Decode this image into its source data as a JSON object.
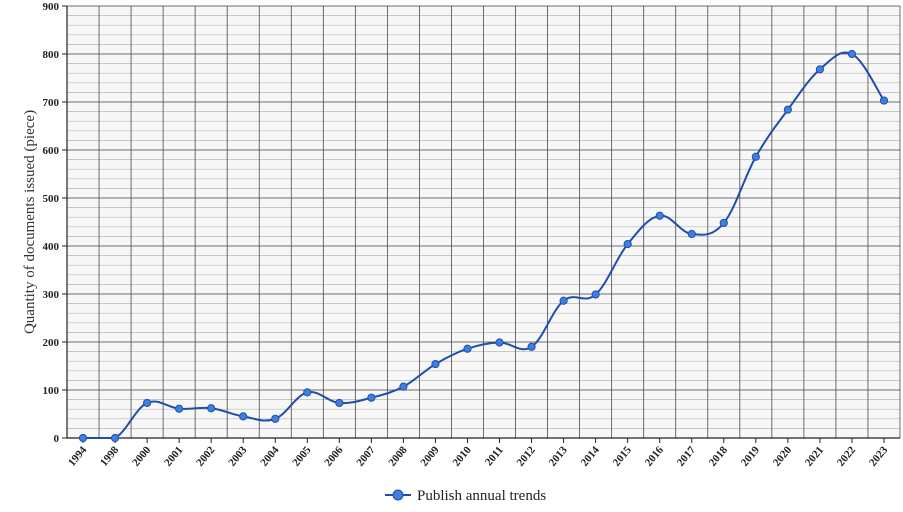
{
  "chart_data": {
    "type": "line",
    "title": "",
    "xlabel": "",
    "ylabel": "Quantity of documents issued (piece)",
    "ylim": [
      0,
      900
    ],
    "yticks": [
      0,
      100,
      200,
      300,
      400,
      500,
      600,
      700,
      800,
      900
    ],
    "grid": true,
    "smooth": true,
    "legend_position": "bottom",
    "line_color": "#1f4fa8",
    "marker_color": "#3f7fe0",
    "categories": [
      "1994",
      "1998",
      "2000",
      "2001",
      "2002",
      "2003",
      "2004",
      "2005",
      "2006",
      "2007",
      "2008",
      "2009",
      "2010",
      "2011",
      "2012",
      "2013",
      "2014",
      "2015",
      "2016",
      "2017",
      "2018",
      "2019",
      "2020",
      "2021",
      "2022",
      "2023"
    ],
    "series": [
      {
        "name": "Publish annual trends",
        "values": [
          0,
          0,
          73,
          61,
          62,
          45,
          40,
          95,
          73,
          84,
          107,
          154,
          186,
          199,
          190,
          286,
          299,
          404,
          463,
          425,
          448,
          586,
          684,
          768,
          800,
          703
        ]
      }
    ]
  }
}
